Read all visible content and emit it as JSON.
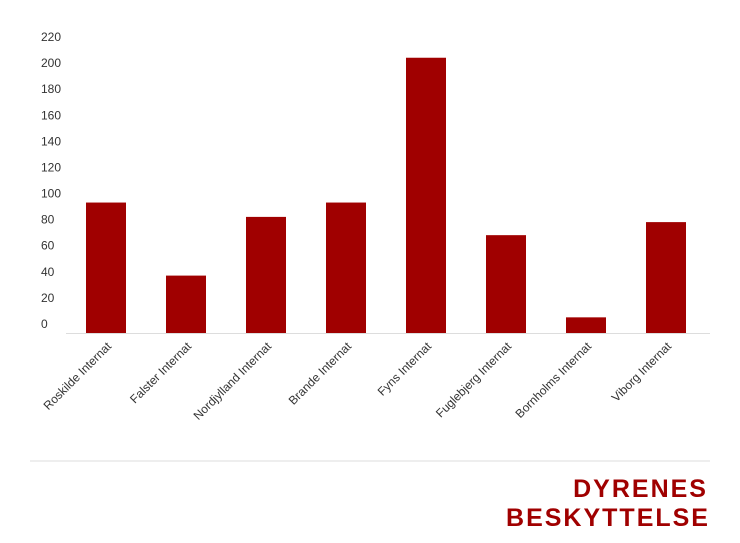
{
  "chart_data": {
    "type": "bar",
    "categories": [
      "Roskilde Internat",
      "Falster Internat",
      "Nordjylland Internat",
      "Brande Internat",
      "Fyns Internat",
      "Fuglebjerg Internat",
      "Bornholms Internat",
      "Viborg Internat"
    ],
    "values": [
      100,
      44,
      89,
      100,
      211,
      75,
      12,
      85
    ],
    "color": "#a00000",
    "ylim": [
      0,
      220
    ],
    "yticks": [
      0,
      20,
      40,
      60,
      80,
      100,
      120,
      140,
      160,
      180,
      200,
      220
    ],
    "grid": false
  },
  "logo": {
    "line1": "DYRENES",
    "line2": "BESKYTTELSE"
  }
}
